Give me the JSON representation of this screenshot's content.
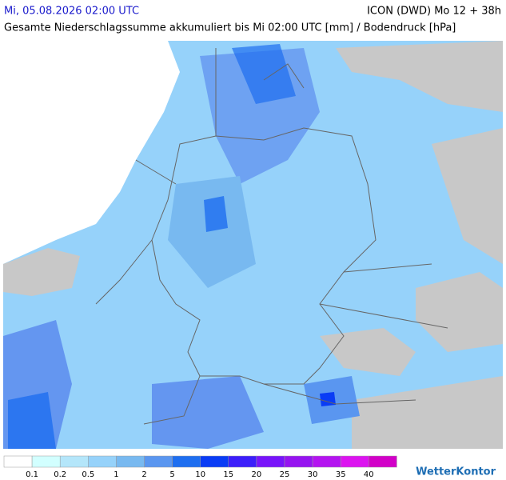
{
  "header": {
    "datetime": "Mi, 05.08.2026 02:00 UTC",
    "model": "ICON (DWD) Mo 12 + 38h",
    "subtitle": "Gesamte Niederschlagssumme akkumuliert bis Mi 02:00 UTC [mm] / Bodendruck [hPa]"
  },
  "legend": {
    "colors": [
      "#ffffff",
      "#d2ffff",
      "#b4e6fa",
      "#96d2fa",
      "#78b9f0",
      "#5a96f0",
      "#1e6ef0",
      "#0a3cf5",
      "#3c1efa",
      "#7814fa",
      "#9614f0",
      "#b414f0",
      "#dc14f0",
      "#d200c8"
    ],
    "labels": [
      "0.1",
      "0.2",
      "0.5",
      "1",
      "2",
      "5",
      "10",
      "15",
      "20",
      "25",
      "30",
      "35",
      "40"
    ]
  },
  "logo": "WetterKontor"
}
